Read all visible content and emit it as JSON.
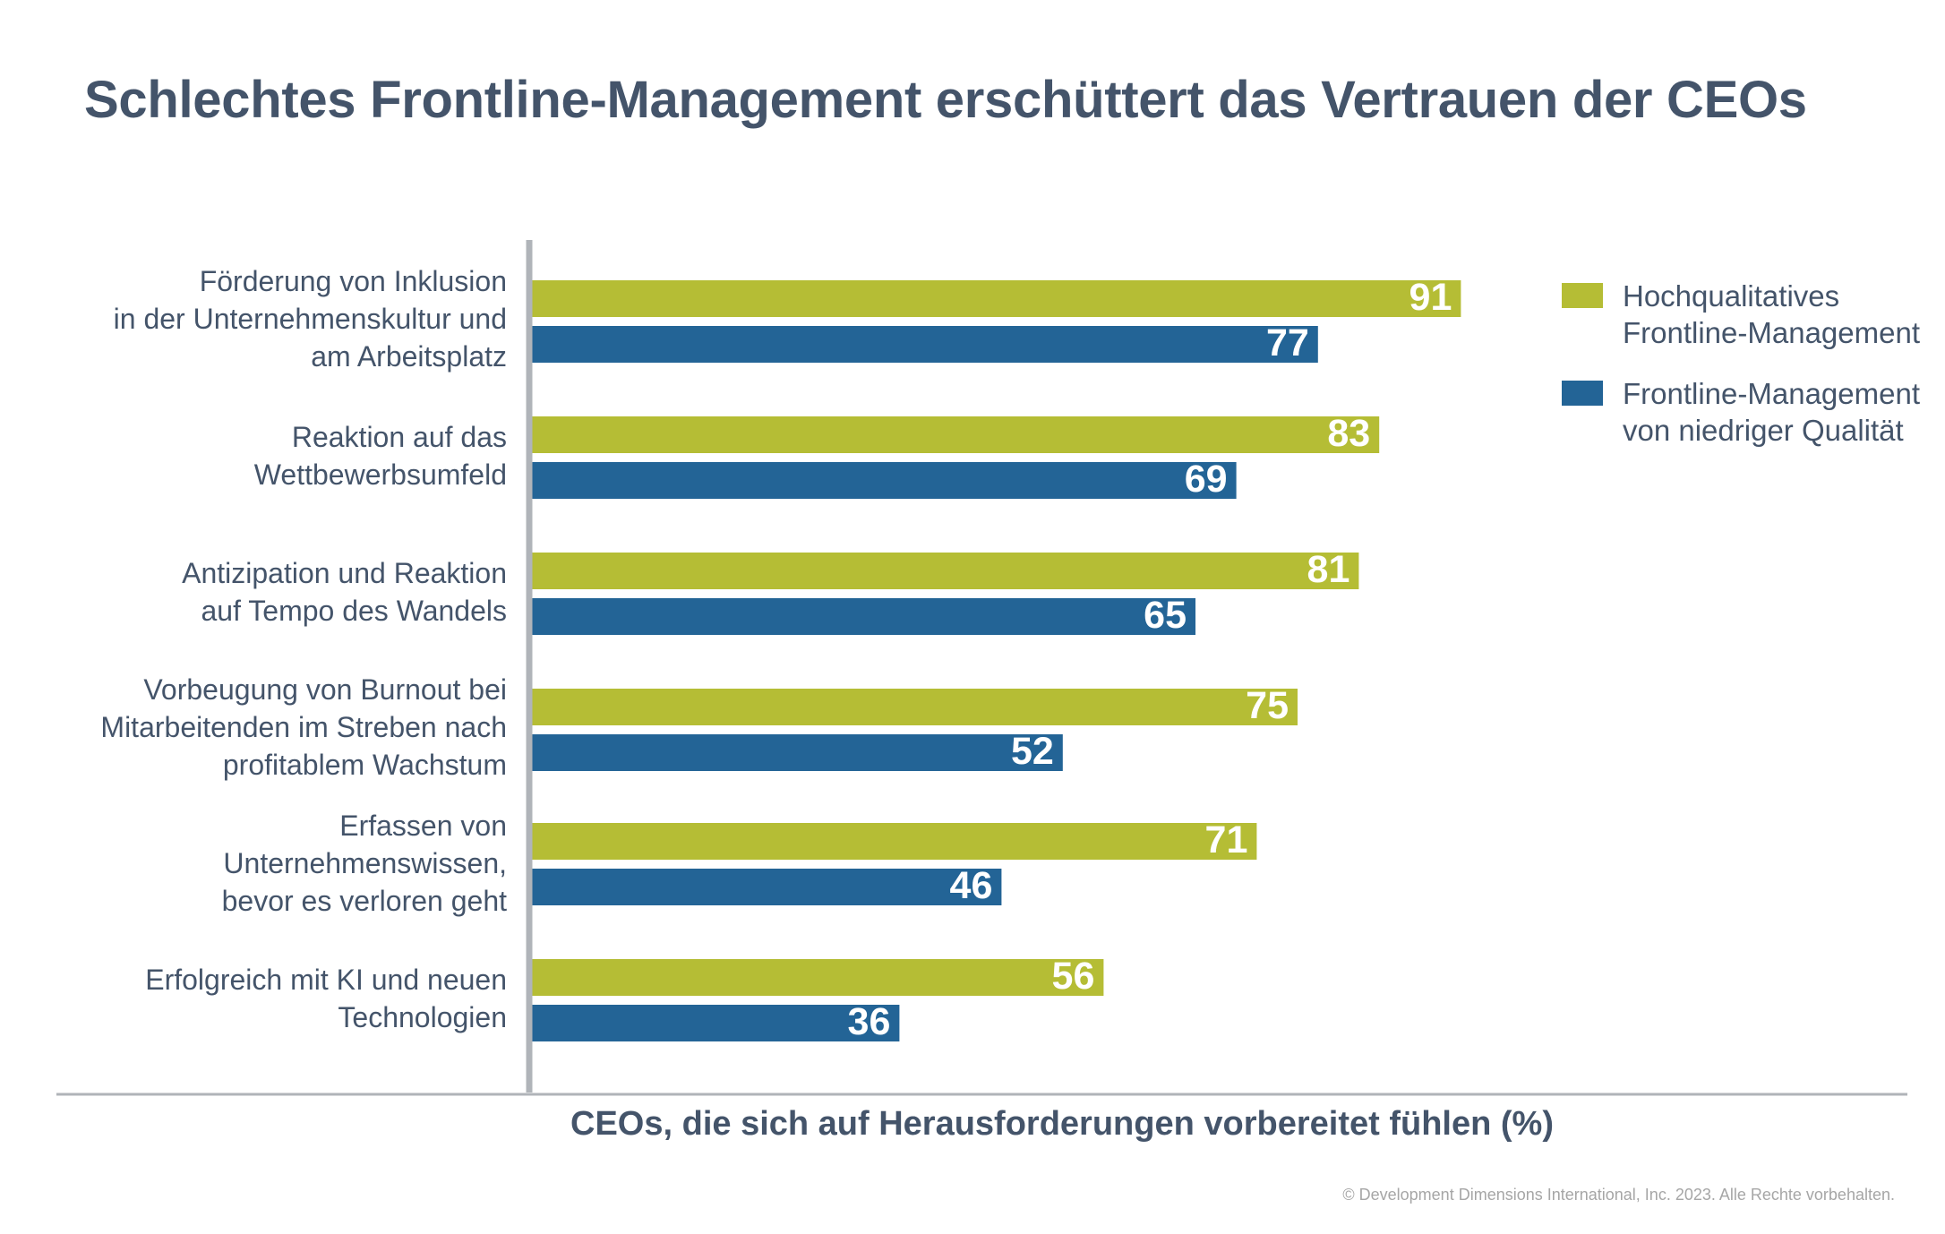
{
  "chart_data": {
    "type": "bar",
    "orientation": "horizontal",
    "title": "Schlechtes Frontline-Management erschüttert das Vertrauen der CEOs",
    "xlabel": "CEOs, die sich auf Herausforderungen vorbereitet fühlen (%)",
    "categories": [
      "Förderung von Inklusion\nin der Unternehmenskultur und\nam Arbeitsplatz",
      "Reaktion auf das\nWettbewerbsumfeld",
      "Antizipation und Reaktion\nauf Tempo des Wandels",
      "Vorbeugung von Burnout bei\nMitarbeitenden im Streben nach\nprofitablem Wachstum",
      "Erfassen von\nUnternehmenswissen,\nbevor es verloren geht",
      "Erfolgreich mit KI und neuen\nTechnologien"
    ],
    "series": [
      {
        "name": "Hochqualitatives\nFrontline-Management",
        "color": "#b5bd35",
        "values": [
          91,
          83,
          81,
          75,
          71,
          56
        ]
      },
      {
        "name": "Frontline-Management\nvon niedriger Qualität",
        "color": "#236496",
        "values": [
          77,
          69,
          65,
          52,
          46,
          36
        ]
      }
    ],
    "xlim": [
      0,
      100
    ],
    "data_labels": true,
    "legend": "top-right",
    "grid": false
  },
  "footer": {
    "copyright": "© Development Dimensions International, Inc. 2023. Alle Rechte vorbehalten."
  },
  "colors": {
    "text": "#44546a",
    "axis": "#b0b4b9",
    "copyright": "#a6a6a6"
  }
}
